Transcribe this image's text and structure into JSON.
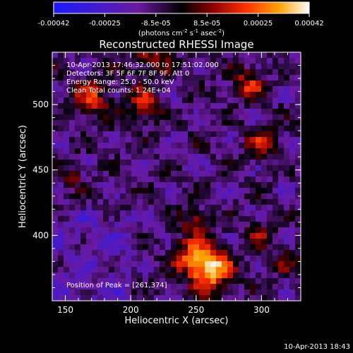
{
  "chart_data": {
    "type": "heatmap",
    "title": "Reconstructed RHESSI Image",
    "xlabel": "Heliocentric X (arcsec)",
    "ylabel": "Heliocentric Y (arcsec)",
    "xlim": [
      140,
      330
    ],
    "ylim": [
      350,
      540
    ],
    "x_ticks": [
      150,
      200,
      250,
      300
    ],
    "y_ticks": [
      400,
      450,
      500
    ],
    "info_lines": [
      "10-Apr-2013 17:46:32.000 to 17:51:02.000",
      "Detectors: 3F 5F 6F 7F 8F 9F, Att 0",
      "Energy Range: 25.0 - 50.0 keV",
      "Clean     Total counts: 1.24E+04"
    ],
    "peak_label": "Position of Peak = [261,374]",
    "peak": [
      261,
      374
    ],
    "colorbar": {
      "ticks": [
        "-0.00042",
        "-0.00025",
        "-8.5e-05",
        "8.5e-05",
        "0.00025",
        "0.00042"
      ],
      "unit_prefix": "(photons cm",
      "unit_exp1": "-2",
      "unit_mid": " s",
      "unit_exp2": "-1",
      "unit_mid2": " asec",
      "unit_exp3": "-2",
      "unit_suffix": ")",
      "range": [
        -0.00042,
        0.00042
      ],
      "colors": [
        "#1a1aff",
        "#6a1aa0",
        "#000000",
        "#8a0000",
        "#ff3000",
        "#ffa000",
        "#ffffff"
      ]
    },
    "footer": "10-Apr-2013 18:43"
  }
}
